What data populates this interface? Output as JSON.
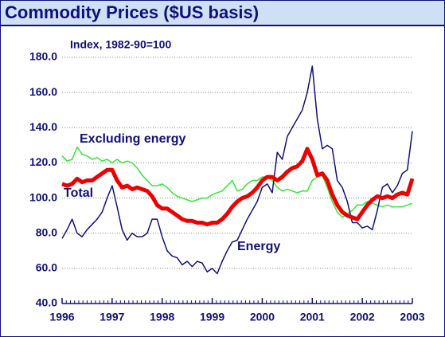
{
  "chart_data": {
    "type": "line",
    "title": "Commodity Prices ($US basis)",
    "y_label": "Index, 1982-90=100",
    "x": [
      1996.0,
      1996.1,
      1996.2,
      1996.3,
      1996.4,
      1996.5,
      1996.6,
      1996.7,
      1996.8,
      1996.9,
      1997.0,
      1997.1,
      1997.2,
      1997.3,
      1997.4,
      1997.5,
      1997.6,
      1997.7,
      1997.8,
      1997.9,
      1998.0,
      1998.1,
      1998.2,
      1998.3,
      1998.4,
      1998.5,
      1998.6,
      1998.7,
      1998.8,
      1998.9,
      1999.0,
      1999.1,
      1999.2,
      1999.3,
      1999.4,
      1999.5,
      1999.6,
      1999.7,
      1999.8,
      1999.9,
      2000.0,
      2000.1,
      2000.2,
      2000.3,
      2000.4,
      2000.5,
      2000.6,
      2000.7,
      2000.8,
      2000.9,
      2001.0,
      2001.1,
      2001.2,
      2001.3,
      2001.4,
      2001.5,
      2001.6,
      2001.7,
      2001.8,
      2001.9,
      2002.0,
      2002.1,
      2002.2,
      2002.3,
      2002.4,
      2002.5,
      2002.6,
      2002.7,
      2002.8,
      2002.9,
      2003.0
    ],
    "series": [
      {
        "name": "Energy",
        "color": "#10107a",
        "width": 1.5,
        "values": [
          77,
          82,
          88,
          80,
          78,
          82,
          85,
          88,
          92,
          100,
          107,
          95,
          82,
          76,
          80,
          78,
          78,
          80,
          88,
          88,
          78,
          70,
          67,
          66,
          62,
          64,
          61,
          64,
          63,
          58,
          60,
          57,
          64,
          70,
          75,
          76,
          82,
          88,
          93,
          98,
          106,
          108,
          103,
          126,
          122,
          135,
          140,
          145,
          150,
          160,
          175,
          145,
          128,
          130,
          128,
          110,
          106,
          98,
          86,
          86,
          83,
          84,
          82,
          93,
          106,
          108,
          103,
          107,
          114,
          116,
          138
        ]
      },
      {
        "name": "Excluding energy",
        "color": "#33e833",
        "width": 1.5,
        "values": [
          124,
          121,
          122,
          129,
          125,
          124,
          122,
          123,
          121,
          122,
          120,
          122,
          120,
          121,
          120,
          117,
          113,
          110,
          107,
          107,
          108,
          106,
          103,
          101,
          100,
          99,
          98,
          99,
          100,
          100,
          102,
          103,
          104,
          107,
          110,
          104,
          105,
          108,
          110,
          110,
          112,
          112,
          110,
          106,
          104,
          105,
          104,
          103,
          104,
          104,
          110,
          112,
          113,
          106,
          98,
          92,
          89,
          91,
          93,
          96,
          96,
          98,
          97,
          96,
          95,
          96,
          95,
          95,
          95,
          96,
          97
        ]
      },
      {
        "name": "Total",
        "color": "#ee0000",
        "width": 5,
        "values": [
          108,
          107,
          108,
          111,
          109,
          110,
          110,
          112,
          114,
          116,
          116,
          110,
          106,
          107,
          105,
          106,
          105,
          104,
          101,
          96,
          94,
          94,
          92,
          90,
          88,
          87,
          87,
          86,
          86,
          85,
          86,
          86,
          88,
          91,
          95,
          98,
          100,
          101,
          103,
          106,
          110,
          112,
          112,
          110,
          112,
          115,
          117,
          118,
          121,
          128,
          122,
          113,
          114,
          110,
          102,
          96,
          92,
          90,
          89,
          88,
          92,
          96,
          99,
          101,
          100,
          101,
          100,
          102,
          103,
          102,
          111
        ]
      }
    ],
    "xlim": [
      1996,
      2003
    ],
    "xticks": [
      1996,
      1997,
      1998,
      1999,
      2000,
      2001,
      2002,
      2003
    ],
    "ylim": [
      40,
      180
    ],
    "yticks": [
      {
        "value": 40,
        "label": "40.0"
      },
      {
        "value": 60,
        "label": "60.0"
      },
      {
        "value": 80,
        "label": "80.0"
      },
      {
        "value": 100,
        "label": "100.0"
      },
      {
        "value": 120,
        "label": "120.0"
      },
      {
        "value": 140,
        "label": "140.0"
      },
      {
        "value": 160,
        "label": "160.0"
      },
      {
        "value": 180,
        "label": "180.0"
      }
    ],
    "grid": true
  }
}
